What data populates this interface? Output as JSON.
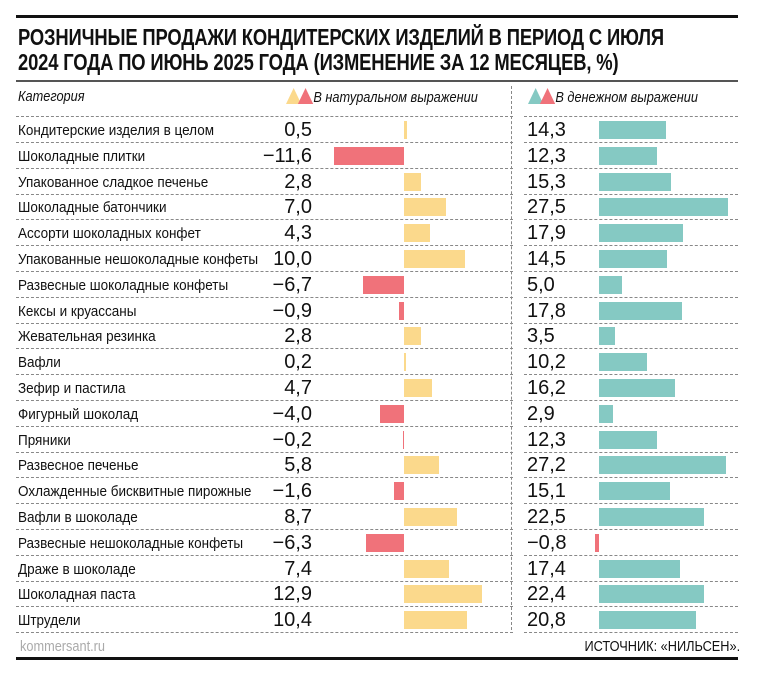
{
  "chart_data": {
    "type": "bar",
    "title": "РОЗНИЧНЫЕ ПРОДАЖИ КОНДИТЕРСКИХ ИЗДЕЛИЙ В ПЕРИОД С ИЮЛЯ 2024 ГОДА ПО ИЮНЬ 2025 ГОДА (ИЗМЕНЕНИЕ ЗА 12 МЕСЯЦЕВ, %)",
    "category_header": "Категория",
    "categories": [
      "Кондитерские изделия в целом",
      "Шоколадные плитки",
      "Упакованное сладкое печенье",
      "Шоколадные батончики",
      "Ассорти шоколадных конфет",
      "Упакованные нешоколадные конфеты",
      "Развесные шоколадные конфеты",
      "Кексы и круассаны",
      "Жевательная резинка",
      "Вафли",
      "Зефир и пастила",
      "Фигурный шоколад",
      "Пряники",
      "Развесное печенье",
      "Охлажденные бисквитные пирожные",
      "Вафли в шоколаде",
      "Развесные нешоколадные конфеты",
      "Драже в шоколаде",
      "Шоколадная паста",
      "Штрудели"
    ],
    "series": [
      {
        "name": "В натуральном выражении",
        "values": [
          0.5,
          -11.6,
          2.8,
          7.0,
          4.3,
          10.0,
          -6.7,
          -0.9,
          2.8,
          0.2,
          4.7,
          -4.0,
          -0.2,
          5.8,
          -1.6,
          8.7,
          -6.3,
          7.4,
          12.9,
          10.4
        ],
        "color_positive": "#fbd98c",
        "color_negative": "#f0727a"
      },
      {
        "name": "В денежном выражении",
        "values": [
          14.3,
          12.3,
          15.3,
          27.5,
          17.9,
          14.5,
          5.0,
          17.8,
          3.5,
          10.2,
          16.2,
          2.9,
          12.3,
          27.2,
          15.1,
          22.5,
          -0.8,
          17.4,
          22.4,
          20.8
        ],
        "color_positive": "#85c9c3",
        "color_negative": "#f0727a"
      }
    ],
    "orientation": "horizontal",
    "grid": false
  },
  "footer": {
    "site": "kommersant.ru",
    "source": "ИСТОЧНИК: «НИЛЬСЕН»."
  }
}
